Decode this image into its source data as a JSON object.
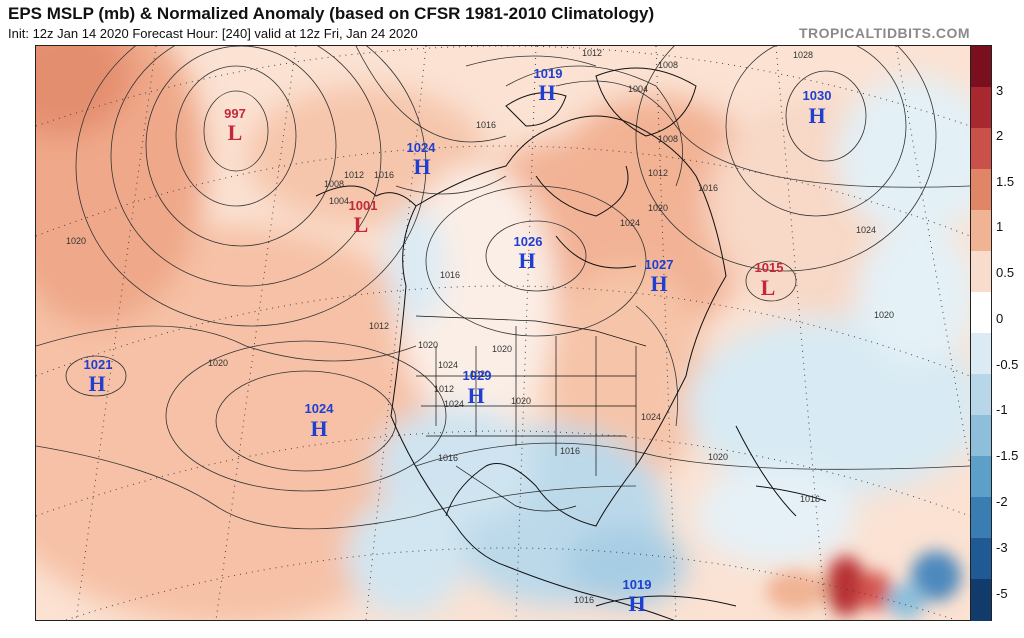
{
  "header": {
    "title": "EPS MSLP (mb) & Normalized Anomaly (based on CFSR 1981-2010 Climatology)",
    "subtitle": "Init: 12z Jan 14 2020   Forecast Hour: [240]   valid at 12z Fri, Jan 24 2020",
    "credit": "TROPICALTIDBITS.COM"
  },
  "colorbar": {
    "ticks": [
      "3",
      "2",
      "1.5",
      "1",
      "0.5",
      "0",
      "-0.5",
      "-1",
      "-1.5",
      "-2",
      "-3",
      "-5"
    ],
    "colors": [
      "#7a0f1e",
      "#a8282f",
      "#c9514a",
      "#e08667",
      "#f0b394",
      "#f8dccc",
      "#ffffff",
      "#dcebf3",
      "#b7d7e8",
      "#8dbfdb",
      "#5c9fc9",
      "#3a7db3",
      "#1f5a94",
      "#103b6a"
    ]
  },
  "map": {
    "systems": [
      {
        "type": "L",
        "value": "997",
        "color": "#c4283a"
      },
      {
        "type": "L",
        "value": "1001",
        "color": "#c4283a"
      },
      {
        "type": "H",
        "value": "1024",
        "color": "#1f3fd0"
      },
      {
        "type": "H",
        "value": "1019",
        "color": "#1f3fd0"
      },
      {
        "type": "H",
        "value": "1030",
        "color": "#1f3fd0"
      },
      {
        "type": "H",
        "value": "1026",
        "color": "#1f3fd0"
      },
      {
        "type": "H",
        "value": "1027",
        "color": "#1f3fd0"
      },
      {
        "type": "L",
        "value": "1015",
        "color": "#c4283a"
      },
      {
        "type": "H",
        "value": "1021",
        "color": "#1f3fd0"
      },
      {
        "type": "H",
        "value": "1024",
        "color": "#1f3fd0"
      },
      {
        "type": "H",
        "value": "1029",
        "color": "#1f3fd0"
      },
      {
        "type": "H",
        "value": "1019",
        "color": "#1f3fd0"
      }
    ],
    "contour_labels": [
      "1020",
      "1012",
      "1008",
      "1004",
      "1016",
      "1020",
      "1012",
      "1016",
      "1020",
      "1024",
      "1020",
      "1012",
      "1020",
      "1024",
      "1016",
      "1020",
      "1016",
      "1016",
      "1020",
      "1024",
      "1028",
      "1004",
      "1008",
      "1012",
      "1016",
      "1024",
      "1020",
      "1012",
      "1008",
      "1016",
      "1024",
      "1016",
      "1020"
    ]
  }
}
